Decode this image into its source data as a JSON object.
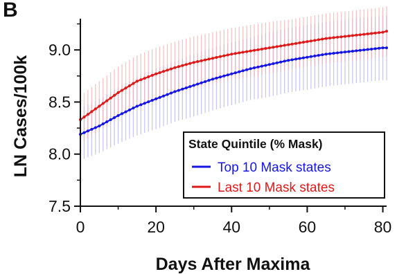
{
  "panel_label": "B",
  "chart_data": {
    "type": "line",
    "title": "",
    "xlabel": "Days After Maxima",
    "ylabel": "LN Cases/100k",
    "xlim": [
      0,
      81
    ],
    "ylim": [
      7.5,
      9.3
    ],
    "x_ticks": [
      0,
      20,
      40,
      60,
      80
    ],
    "y_ticks": [
      7.5,
      8.0,
      8.5,
      9.0
    ],
    "grid": false,
    "error_bars": true,
    "legend": {
      "title": "State Quintile (% Mask)",
      "position": "bottom-right"
    },
    "series": [
      {
        "name": "Top 10 Mask states",
        "color": "#1515e6",
        "band_color": "#b7b3ee",
        "x": [
          0,
          5,
          10,
          15,
          20,
          25,
          30,
          35,
          40,
          45,
          50,
          55,
          60,
          65,
          70,
          75,
          80,
          81
        ],
        "y": [
          8.19,
          8.27,
          8.37,
          8.46,
          8.53,
          8.6,
          8.66,
          8.72,
          8.77,
          8.82,
          8.86,
          8.9,
          8.93,
          8.96,
          8.98,
          9.0,
          9.02,
          9.02
        ],
        "err": [
          0.25,
          0.26,
          0.27,
          0.28,
          0.29,
          0.29,
          0.3,
          0.3,
          0.3,
          0.3,
          0.31,
          0.31,
          0.31,
          0.31,
          0.31,
          0.31,
          0.31,
          0.31
        ]
      },
      {
        "name": "Last 10 Mask states",
        "color": "#e01818",
        "band_color": "#f2b0b0",
        "x": [
          0,
          5,
          10,
          15,
          20,
          25,
          30,
          35,
          40,
          45,
          50,
          55,
          60,
          65,
          70,
          75,
          80,
          81
        ],
        "y": [
          8.33,
          8.46,
          8.59,
          8.7,
          8.77,
          8.83,
          8.88,
          8.92,
          8.96,
          8.99,
          9.02,
          9.05,
          9.08,
          9.11,
          9.13,
          9.15,
          9.17,
          9.18
        ],
        "err": [
          0.23,
          0.24,
          0.25,
          0.25,
          0.25,
          0.25,
          0.25,
          0.25,
          0.25,
          0.25,
          0.25,
          0.24,
          0.24,
          0.24,
          0.24,
          0.24,
          0.24,
          0.24
        ]
      }
    ]
  }
}
